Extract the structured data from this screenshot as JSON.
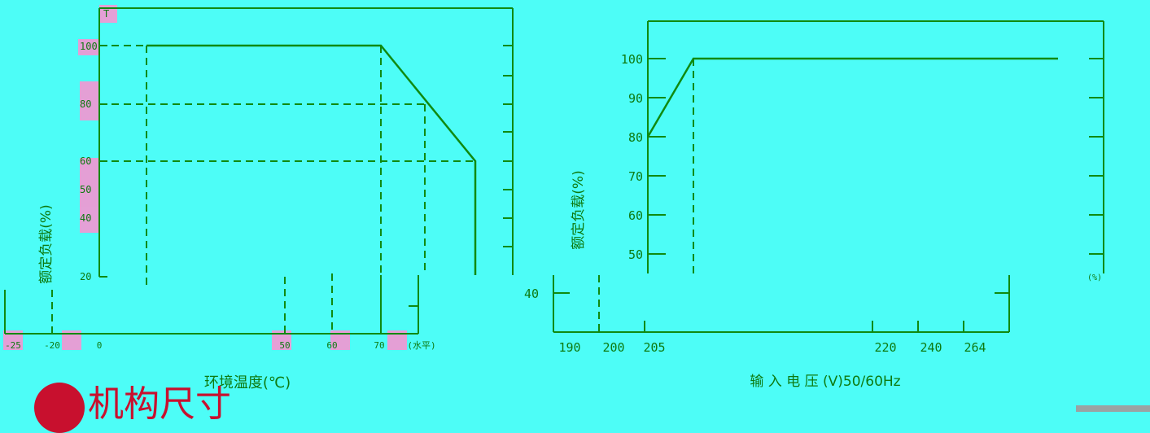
{
  "chart_data": [
    {
      "type": "line",
      "title": "",
      "xlabel": "环境温度(℃)",
      "ylabel": "额定负载(%)",
      "x_ticks": [
        "-25",
        "-20",
        "0",
        "50",
        "60",
        "70",
        "(水平)"
      ],
      "y_ticks": [
        "100",
        "80",
        "60",
        "50",
        "40",
        "20"
      ],
      "series": [
        {
          "x": [
            -10,
            70,
            80
          ],
          "y": [
            100,
            100,
            60
          ]
        }
      ],
      "reference_lines": [
        {
          "x": [
            -25,
            80
          ],
          "y": [
            100,
            100
          ]
        },
        {
          "x": [
            -25,
            70
          ],
          "y": [
            80,
            80
          ]
        },
        {
          "x": [
            -25,
            80
          ],
          "y": [
            60,
            60
          ]
        }
      ],
      "top_label": "T"
    },
    {
      "type": "line",
      "title": "",
      "xlabel": "输 入 电 压 (V)50/60Hz",
      "ylabel": "额定负载(%)",
      "x_ticks": [
        "190",
        "200",
        "205",
        "220",
        "240",
        "264"
      ],
      "y_ticks": [
        "100",
        "90",
        "80",
        "70",
        "60",
        "50",
        "40"
      ],
      "series": [
        {
          "x": [
            190,
            200,
            264
          ],
          "y": [
            80,
            100,
            100
          ]
        }
      ],
      "right_label": "(%)"
    }
  ],
  "section": {
    "title": "机构尺寸"
  },
  "colors": {
    "background": "#4dfdf7",
    "ink": "#108a10",
    "highlight": "#ff8fd0",
    "accent": "#c8102e"
  }
}
